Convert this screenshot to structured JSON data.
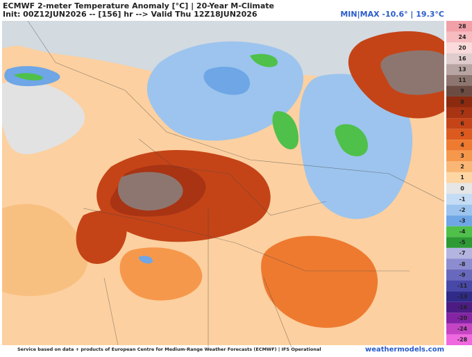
{
  "header": {
    "title": "ECMWF 2-meter Temperature Anomaly [°C] | 20-Year M-Climate",
    "subtitle": "Init: 00Z12JUN2026 -- [156] hr --> Valid Thu 12Z18JUN2026",
    "minmax": "MIN|MAX -10.6° | 19.3°C"
  },
  "legend": {
    "labels": [
      {
        "label": "28",
        "color": "#f2a0a8"
      },
      {
        "label": "24",
        "color": "#f6bcc0"
      },
      {
        "label": "20",
        "color": "#fadada"
      },
      {
        "label": "16",
        "color": "#e0cccc"
      },
      {
        "label": "13",
        "color": "#b8a4a2"
      },
      {
        "label": "11",
        "color": "#8e7670"
      },
      {
        "label": "9",
        "color": "#6c4c42"
      },
      {
        "label": "8",
        "color": "#8c2a10"
      },
      {
        "label": "7",
        "color": "#a83414"
      },
      {
        "label": "6",
        "color": "#c44418"
      },
      {
        "label": "5",
        "color": "#dc5a1e"
      },
      {
        "label": "4",
        "color": "#ee7a30"
      },
      {
        "label": "3",
        "color": "#f6984c"
      },
      {
        "label": "2",
        "color": "#fab674"
      },
      {
        "label": "1",
        "color": "#fdd6a4"
      },
      {
        "label": "0",
        "color": "#e6e6e6"
      },
      {
        "label": "-1",
        "color": "#c4dcf4"
      },
      {
        "label": "-2",
        "color": "#9cc4ee"
      },
      {
        "label": "-3",
        "color": "#6ea6e6"
      },
      {
        "label": "-4",
        "color": "#4fc04a"
      },
      {
        "label": "-5",
        "color": "#2e9a34"
      },
      {
        "label": "-7",
        "color": "#b4b4e0"
      },
      {
        "label": "-8",
        "color": "#8c8cd0"
      },
      {
        "label": "-9",
        "color": "#6868bc"
      },
      {
        "label": "-11",
        "color": "#4848a8"
      },
      {
        "label": "-13",
        "color": "#302a88"
      },
      {
        "label": "-16",
        "color": "#4c1c84"
      },
      {
        "label": "-20",
        "color": "#8424a4"
      },
      {
        "label": "-24",
        "color": "#c444c4"
      },
      {
        "label": "-28",
        "color": "#f068e0"
      }
    ]
  },
  "footer": {
    "credit": "Service based on data + products of European Centre for Medium-Range Weather Forecasts (ECMWF) | IFS Operational",
    "brand": "weathermodels.com"
  }
}
